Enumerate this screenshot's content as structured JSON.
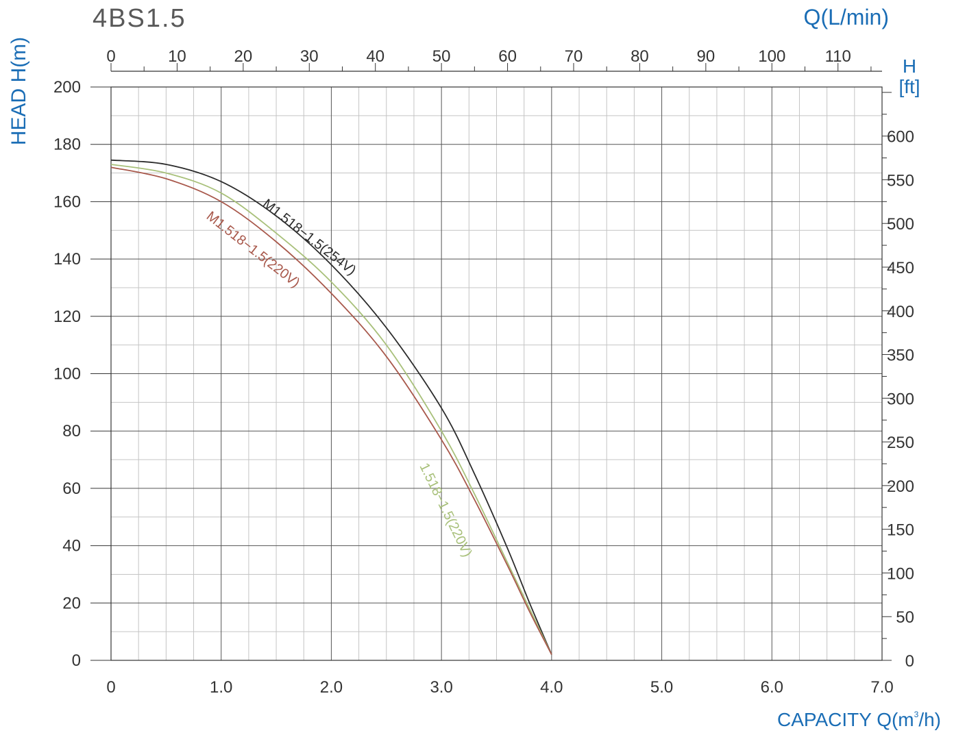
{
  "chart_data": {
    "type": "line",
    "title": "4BS1.5",
    "xlabel": "CAPACITY Q(m",
    "xlabel_sup": "3",
    "xlabel_end": "/h)",
    "ylabel": "HEAD H(m)",
    "top_axis_label": "Q(L/min)",
    "right_axis_label": [
      "H",
      "[ft]"
    ],
    "xlim": [
      0,
      7
    ],
    "ylim": [
      0,
      200
    ],
    "x_ticks": [
      "0",
      "1.0",
      "2.0",
      "3.0",
      "4.0",
      "5.0",
      "6.0",
      "7.0"
    ],
    "y_ticks": [
      "0",
      "20",
      "40",
      "60",
      "80",
      "100",
      "120",
      "140",
      "160",
      "180",
      "200"
    ],
    "top_ticks": [
      "0",
      "10",
      "20",
      "30",
      "40",
      "50",
      "60",
      "70",
      "80",
      "90",
      "100",
      "110"
    ],
    "right_ticks": [
      "0",
      "50",
      "100",
      "150",
      "200",
      "250",
      "300",
      "350",
      "400",
      "450",
      "500",
      "550",
      "600"
    ],
    "grid": true,
    "series": [
      {
        "name": "M1.518−1.5(254V)",
        "color": "#2b2b2b",
        "x": [
          0,
          0.5,
          1.0,
          1.5,
          2.0,
          2.5,
          3.0,
          3.3,
          3.6,
          3.8,
          4.0
        ],
        "y": [
          174.5,
          173,
          167,
          155,
          138,
          116,
          88,
          65,
          39,
          20,
          2
        ]
      },
      {
        "name": "1.518−1.5(220V)",
        "color": "#a8c07a",
        "x": [
          0,
          0.5,
          1.0,
          1.5,
          2.0,
          2.5,
          3.0,
          3.3,
          3.6,
          3.8,
          4.0
        ],
        "y": [
          173,
          170,
          163,
          149,
          132,
          110,
          80,
          58,
          34,
          18,
          2
        ]
      },
      {
        "name": "M1.518−1.5(220V)",
        "color": "#a8584b",
        "x": [
          0,
          0.5,
          1.0,
          1.5,
          2.0,
          2.5,
          3.0,
          3.3,
          3.6,
          3.8,
          4.0
        ],
        "y": [
          172,
          168,
          160,
          146,
          128,
          106,
          77,
          56,
          33,
          17,
          2
        ]
      }
    ]
  }
}
